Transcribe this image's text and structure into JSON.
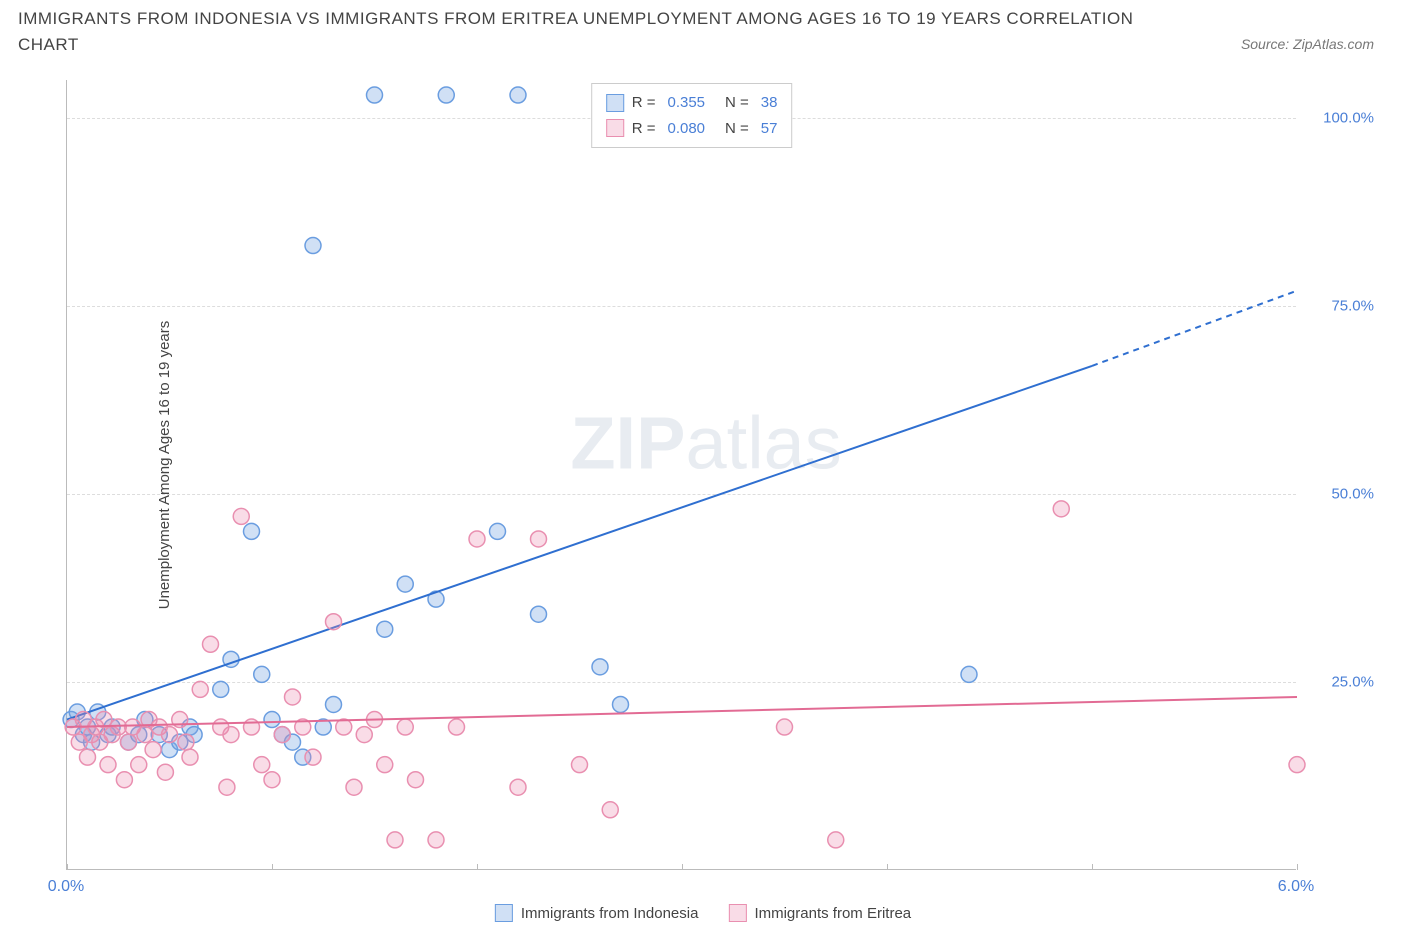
{
  "title": "IMMIGRANTS FROM INDONESIA VS IMMIGRANTS FROM ERITREA UNEMPLOYMENT AMONG AGES 16 TO 19 YEARS CORRELATION CHART",
  "source": "Source: ZipAtlas.com",
  "watermark_bold": "ZIP",
  "watermark_light": "atlas",
  "chart": {
    "type": "scatter",
    "y_axis_title": "Unemployment Among Ages 16 to 19 years",
    "xlim": [
      0,
      6
    ],
    "ylim": [
      0,
      105
    ],
    "x_ticks": [
      0,
      1,
      2,
      3,
      4,
      5,
      6
    ],
    "x_tick_labels": {
      "0": "0.0%",
      "6": "6.0%"
    },
    "y_gridlines": [
      25,
      50,
      75,
      100
    ],
    "y_tick_labels": [
      "25.0%",
      "50.0%",
      "75.0%",
      "100.0%"
    ],
    "background_color": "#ffffff",
    "grid_color": "#dddddd",
    "axis_color": "#bbbbbb",
    "tick_label_color": "#4a7fd6",
    "marker_radius": 8,
    "marker_stroke_width": 1.5,
    "series": [
      {
        "name": "Immigrants from Indonesia",
        "fill": "rgba(120,165,225,0.35)",
        "stroke": "#6a9de0",
        "line_color": "#2f6fd0",
        "line_width": 2,
        "R": "0.355",
        "N": "38",
        "trend": {
          "x1": 0,
          "y1": 20,
          "x2_solid": 5.0,
          "y2_solid": 67,
          "x2_dash": 6.0,
          "y2_dash": 77
        },
        "points": [
          [
            0.02,
            20
          ],
          [
            0.05,
            21
          ],
          [
            0.08,
            18
          ],
          [
            0.1,
            19
          ],
          [
            0.12,
            17
          ],
          [
            0.15,
            21
          ],
          [
            0.2,
            18
          ],
          [
            0.22,
            19
          ],
          [
            0.3,
            17
          ],
          [
            0.35,
            18
          ],
          [
            0.38,
            20
          ],
          [
            0.45,
            18
          ],
          [
            0.5,
            16
          ],
          [
            0.55,
            17
          ],
          [
            0.6,
            19
          ],
          [
            0.62,
            18
          ],
          [
            0.75,
            24
          ],
          [
            0.8,
            28
          ],
          [
            0.9,
            45
          ],
          [
            0.95,
            26
          ],
          [
            1.0,
            20
          ],
          [
            1.05,
            18
          ],
          [
            1.1,
            17
          ],
          [
            1.15,
            15
          ],
          [
            1.2,
            83
          ],
          [
            1.25,
            19
          ],
          [
            1.3,
            22
          ],
          [
            1.5,
            103
          ],
          [
            1.55,
            32
          ],
          [
            1.65,
            38
          ],
          [
            1.8,
            36
          ],
          [
            1.85,
            103
          ],
          [
            2.1,
            45
          ],
          [
            2.2,
            103
          ],
          [
            2.3,
            34
          ],
          [
            2.6,
            27
          ],
          [
            2.7,
            22
          ],
          [
            4.4,
            26
          ]
        ]
      },
      {
        "name": "Immigrants from Eritrea",
        "fill": "rgba(235,140,175,0.30)",
        "stroke": "#e98fb0",
        "line_color": "#e26b94",
        "line_width": 2,
        "R": "0.080",
        "N": "57",
        "trend": {
          "x1": 0,
          "y1": 19,
          "x2_solid": 6.0,
          "y2_solid": 23,
          "x2_dash": 6.0,
          "y2_dash": 23
        },
        "points": [
          [
            0.03,
            19
          ],
          [
            0.06,
            17
          ],
          [
            0.08,
            20
          ],
          [
            0.1,
            15
          ],
          [
            0.12,
            18
          ],
          [
            0.14,
            19
          ],
          [
            0.16,
            17
          ],
          [
            0.18,
            20
          ],
          [
            0.2,
            14
          ],
          [
            0.22,
            18
          ],
          [
            0.25,
            19
          ],
          [
            0.28,
            12
          ],
          [
            0.3,
            17
          ],
          [
            0.32,
            19
          ],
          [
            0.35,
            14
          ],
          [
            0.38,
            18
          ],
          [
            0.4,
            20
          ],
          [
            0.42,
            16
          ],
          [
            0.45,
            19
          ],
          [
            0.48,
            13
          ],
          [
            0.5,
            18
          ],
          [
            0.55,
            20
          ],
          [
            0.58,
            17
          ],
          [
            0.6,
            15
          ],
          [
            0.65,
            24
          ],
          [
            0.7,
            30
          ],
          [
            0.75,
            19
          ],
          [
            0.78,
            11
          ],
          [
            0.8,
            18
          ],
          [
            0.85,
            47
          ],
          [
            0.9,
            19
          ],
          [
            0.95,
            14
          ],
          [
            1.0,
            12
          ],
          [
            1.05,
            18
          ],
          [
            1.1,
            23
          ],
          [
            1.15,
            19
          ],
          [
            1.2,
            15
          ],
          [
            1.3,
            33
          ],
          [
            1.35,
            19
          ],
          [
            1.4,
            11
          ],
          [
            1.45,
            18
          ],
          [
            1.5,
            20
          ],
          [
            1.55,
            14
          ],
          [
            1.6,
            4
          ],
          [
            1.65,
            19
          ],
          [
            1.7,
            12
          ],
          [
            1.8,
            4
          ],
          [
            1.9,
            19
          ],
          [
            2.0,
            44
          ],
          [
            2.2,
            11
          ],
          [
            2.3,
            44
          ],
          [
            2.5,
            14
          ],
          [
            2.65,
            8
          ],
          [
            3.5,
            19
          ],
          [
            3.75,
            4
          ],
          [
            4.85,
            48
          ],
          [
            6.0,
            14
          ]
        ]
      }
    ]
  },
  "legend_box_label_R": "R =",
  "legend_box_label_N": "N ="
}
